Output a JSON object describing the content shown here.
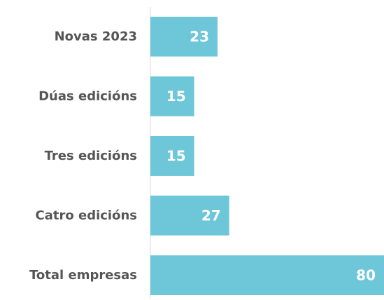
{
  "chart_data": {
    "type": "bar",
    "orientation": "horizontal",
    "categories": [
      "Novas 2023",
      "Dúas edicións",
      "Tres edicións",
      "Catro edicións",
      "Total empresas"
    ],
    "values": [
      23,
      15,
      15,
      27,
      80
    ],
    "value_labels": [
      "23",
      "15",
      "15",
      "27",
      "80"
    ],
    "xlim": [
      0,
      80
    ],
    "grid": false,
    "legend": "none",
    "colors": {
      "bar": "#6ec6d9",
      "axis": "#d9d9d9",
      "category_text": "#555555",
      "value_text": "#ffffff"
    }
  }
}
